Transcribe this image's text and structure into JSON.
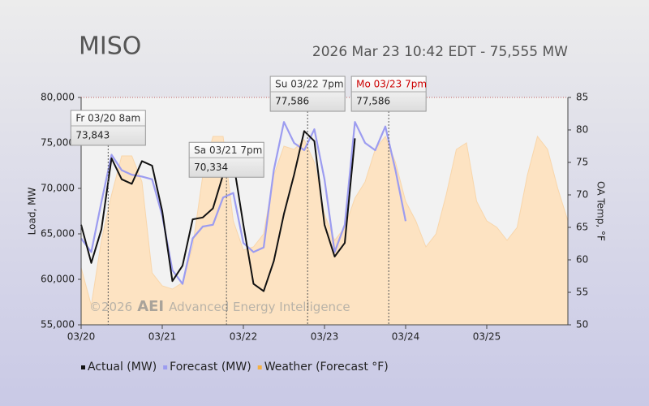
{
  "chart_data": {
    "type": "line",
    "title": "MISO",
    "subtitle": "2026 Mar 23 10:42 EDT - 75,555 MW",
    "y_label": "Load, MW",
    "y2_label": "OA Temp, °F",
    "watermark": [
      "©2026",
      "AEI",
      "Advanced Energy Intelligence"
    ],
    "xlim": [
      0,
      144
    ],
    "xticks": [
      {
        "value": 0,
        "label": "03/20"
      },
      {
        "value": 24,
        "label": "03/21"
      },
      {
        "value": 48,
        "label": "03/22"
      },
      {
        "value": 72,
        "label": "03/23"
      },
      {
        "value": 96,
        "label": "03/24"
      },
      {
        "value": 120,
        "label": "03/25"
      }
    ],
    "ylim": [
      55000,
      80000
    ],
    "yticks": [
      {
        "value": 55000,
        "label": "55,000"
      },
      {
        "value": 60000,
        "label": "60,000"
      },
      {
        "value": 65000,
        "label": "65,000"
      },
      {
        "value": 70000,
        "label": "70,000"
      },
      {
        "value": 75000,
        "label": "75,000"
      },
      {
        "value": 80000,
        "label": "80,000"
      }
    ],
    "y2lim": [
      50,
      85
    ],
    "y2ticks": [
      50,
      55,
      60,
      65,
      70,
      75,
      80,
      85
    ],
    "series": [
      {
        "name": "Weather (Forecast °F)",
        "color": "#fde3c2",
        "legend_color": "#f5b044",
        "style": "area",
        "axis": "y2",
        "x": [
          0,
          3,
          6,
          9,
          12,
          15,
          18,
          21,
          24,
          27,
          30,
          33,
          36,
          39,
          42,
          45,
          48,
          51,
          54,
          57,
          60,
          63,
          66,
          69,
          72,
          75,
          78,
          81,
          84,
          87,
          90,
          93,
          96,
          99,
          102,
          105,
          108,
          111,
          114,
          117,
          120,
          123,
          126,
          129,
          132,
          135,
          138,
          141,
          144
        ],
        "values": [
          58.8,
          53,
          63,
          70,
          76,
          76,
          72,
          58,
          56,
          55.5,
          56.5,
          62,
          73,
          79,
          79,
          66,
          61.5,
          62,
          64,
          73,
          77.5,
          77,
          78.5,
          75,
          67,
          63,
          65,
          69.5,
          72,
          77,
          79,
          75,
          69,
          66,
          62,
          64,
          70,
          77,
          78,
          69,
          66,
          65,
          63,
          65,
          73,
          79,
          77,
          71,
          66
        ]
      },
      {
        "name": "Forecast (MW)",
        "color": "#9c9cf0",
        "style": "line",
        "x": [
          0,
          3,
          6,
          9,
          12,
          15,
          18,
          21,
          24,
          27,
          30,
          33,
          36,
          39,
          42,
          45,
          48,
          51,
          54,
          57,
          60,
          63,
          66,
          69,
          72,
          75,
          78,
          81,
          84,
          87,
          90,
          93,
          96
        ],
        "values": [
          64500,
          63000,
          68500,
          73700,
          72000,
          71500,
          71300,
          71000,
          67000,
          61000,
          59500,
          64500,
          65800,
          66000,
          69000,
          69500,
          64000,
          63000,
          63500,
          72000,
          77300,
          75000,
          74200,
          76500,
          71000,
          63000,
          66000,
          77300,
          75000,
          74200,
          76800,
          72000,
          66400
        ]
      },
      {
        "name": "Actual (MW)",
        "color": "#111111",
        "style": "line",
        "x": [
          0,
          3,
          6,
          9,
          12,
          15,
          18,
          21,
          24,
          27,
          30,
          33,
          36,
          39,
          42,
          45,
          48,
          51,
          54,
          57,
          60,
          63,
          66,
          69,
          72,
          75,
          78,
          81
        ],
        "values": [
          66000,
          61800,
          65500,
          73300,
          71000,
          70500,
          73000,
          72500,
          67500,
          59800,
          61500,
          66600,
          66800,
          67800,
          71500,
          73000,
          66000,
          59500,
          58700,
          62000,
          67200,
          71500,
          76300,
          75200,
          66000,
          62500,
          64000,
          75500
        ]
      }
    ],
    "annotations": [
      {
        "x": 8,
        "value": 73843,
        "value_label": "73,843",
        "title": "Fr 03/20 8am",
        "color": "#333333"
      },
      {
        "x": 43,
        "value": 70334,
        "value_label": "70,334",
        "title": "Sa 03/21 7pm",
        "color": "#333333"
      },
      {
        "x": 67,
        "value": 77586,
        "value_label": "77,586",
        "title": "Su 03/22 7pm",
        "color": "#333333"
      },
      {
        "x": 91,
        "value": 77586,
        "value_label": "77,586",
        "title": "Mo 03/23 7pm",
        "color": "#cc0000"
      }
    ]
  }
}
